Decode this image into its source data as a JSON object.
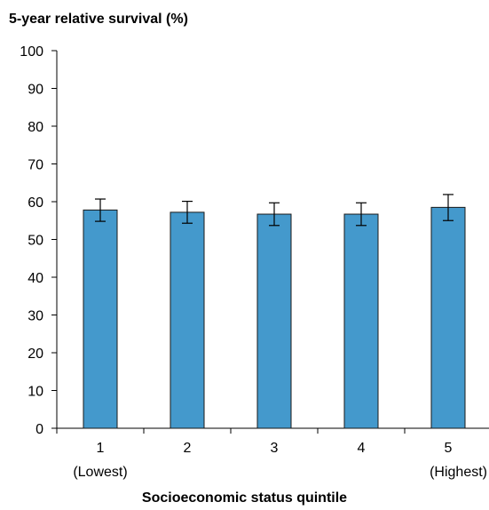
{
  "chart_data": {
    "type": "bar",
    "ylabel": "5-year relative survival (%)",
    "xlabel": "Socioeconomic  status quintile",
    "categories": [
      "1",
      "2",
      "3",
      "4",
      "5"
    ],
    "category_sublabels": [
      "(Lowest)",
      "",
      "",
      "",
      "(Highest)"
    ],
    "values": [
      57.8,
      57.2,
      56.7,
      56.7,
      58.5
    ],
    "error_low": [
      54.8,
      54.3,
      53.7,
      53.7,
      55.0
    ],
    "error_high": [
      60.7,
      60.1,
      59.7,
      59.7,
      61.9
    ],
    "ylim": [
      0,
      100
    ],
    "yticks": [
      0,
      10,
      20,
      30,
      40,
      50,
      60,
      70,
      80,
      90,
      100
    ],
    "grid": false,
    "colors": {
      "bar_fill": "#4499cc",
      "bar_stroke": "#1a1a1a",
      "axis": "#000000"
    }
  }
}
